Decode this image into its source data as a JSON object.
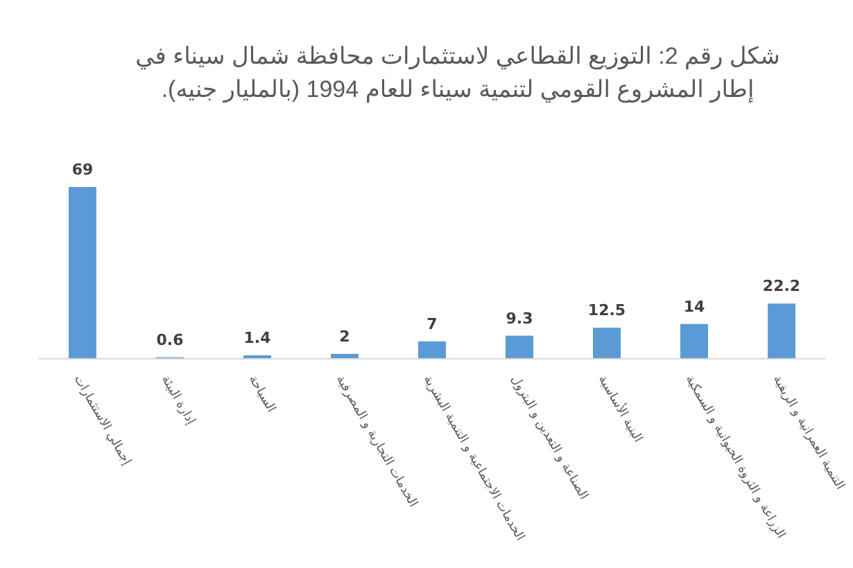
{
  "chart_data": {
    "type": "bar",
    "title": "شكل رقم 2: التوزيع القطاعي لاستثمارات محافظة شمال سيناء في إطار المشروع القومي لتنمية سيناء للعام 1994 (بالمليار جنيه).",
    "categories": [
      "إجمالي الاستثمارات",
      "إدارة البيئة",
      "السياحة",
      "الخدمات التجارية و المصرفية",
      "الخدمات الاجتماعية و التنمية البشرية",
      "الصناعة و التعدين و البترول",
      "البنية الأساسية",
      "الزراعة و الثروة الحيوانية و السمكية",
      "التنمية العمرانية و الريفية"
    ],
    "values": [
      69,
      0.6,
      1.4,
      2,
      7,
      9.3,
      12.5,
      14,
      22.2
    ],
    "color": "#5b9bd5",
    "data_labels": true
  }
}
